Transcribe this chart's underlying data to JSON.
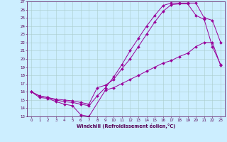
{
  "background_color": "#cceeff",
  "grid_color": "#aacccc",
  "line_color": "#990099",
  "xlabel": "Windchill (Refroidissement éolien,°C)",
  "xlim": [
    -0.5,
    23.5
  ],
  "ylim": [
    13,
    27
  ],
  "xticks": [
    0,
    1,
    2,
    3,
    4,
    5,
    6,
    7,
    8,
    9,
    10,
    11,
    12,
    13,
    14,
    15,
    16,
    17,
    18,
    19,
    20,
    21,
    22,
    23
  ],
  "yticks": [
    13,
    14,
    15,
    16,
    17,
    18,
    19,
    20,
    21,
    22,
    23,
    24,
    25,
    26,
    27
  ],
  "curve1_x": [
    0,
    1,
    2,
    3,
    4,
    5,
    6,
    7,
    9,
    10,
    11,
    12,
    13,
    14,
    15,
    16,
    17,
    18,
    19,
    20,
    21,
    22,
    23
  ],
  "curve1_y": [
    16.0,
    15.3,
    15.2,
    14.8,
    14.5,
    14.3,
    13.2,
    13.0,
    16.2,
    16.5,
    17.0,
    17.5,
    18.0,
    18.5,
    19.0,
    19.5,
    19.8,
    20.3,
    20.7,
    21.5,
    22.0,
    22.0,
    19.2
  ],
  "curve2_x": [
    0,
    1,
    2,
    3,
    4,
    5,
    6,
    7,
    8,
    9,
    10,
    11,
    12,
    13,
    14,
    15,
    16,
    17,
    18,
    19,
    20,
    21,
    22,
    23
  ],
  "curve2_y": [
    16.0,
    15.5,
    15.3,
    15.1,
    15.0,
    14.9,
    14.7,
    14.5,
    16.5,
    16.8,
    17.5,
    18.8,
    20.0,
    21.5,
    23.0,
    24.5,
    25.8,
    26.6,
    26.7,
    26.7,
    25.3,
    24.8,
    21.5,
    19.3
  ],
  "curve3_x": [
    0,
    1,
    2,
    3,
    4,
    5,
    6,
    7,
    8,
    9,
    10,
    11,
    12,
    13,
    14,
    15,
    16,
    17,
    18,
    19,
    20,
    21,
    22,
    23
  ],
  "curve3_y": [
    16.0,
    15.5,
    15.3,
    15.0,
    14.8,
    14.7,
    14.5,
    14.3,
    15.5,
    16.5,
    17.8,
    19.3,
    21.0,
    22.5,
    24.0,
    25.3,
    26.5,
    26.8,
    26.8,
    26.8,
    26.8,
    25.0,
    24.7,
    22.0
  ]
}
